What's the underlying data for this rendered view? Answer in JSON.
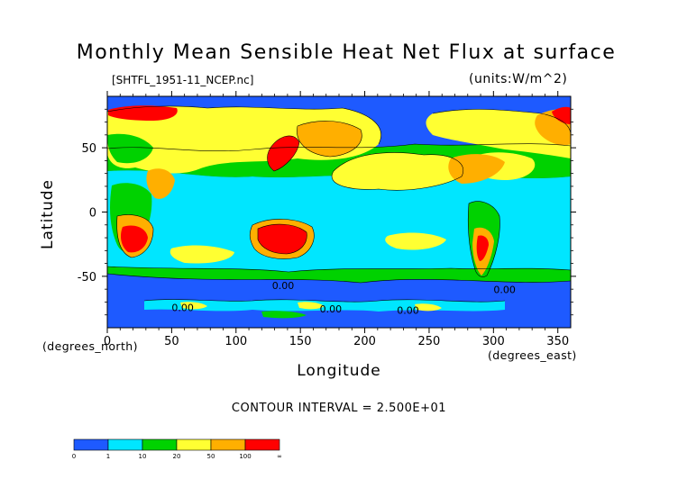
{
  "chart_data": {
    "type": "heatmap",
    "title": "Monthly Mean Sensible Heat Net Flux at surface",
    "source_file": "[SHTFL_1951-11_NCEP.nc]",
    "units": "(units:W/m^2)",
    "xlabel": "Longitude",
    "ylabel": "Latitude",
    "x_unit_label": "(degrees_east)",
    "y_unit_label": "(degrees_north)",
    "contour_interval": "CONTOUR INTERVAL = 2.500E+01",
    "xlim": [
      0,
      360
    ],
    "ylim": [
      -90,
      90
    ],
    "x_ticks": [
      0,
      50,
      100,
      150,
      200,
      250,
      300,
      350
    ],
    "y_ticks": [
      -50,
      0,
      50
    ],
    "contour_labels": [
      "0.00",
      "0.00",
      "0.00",
      "0.00",
      "0.00"
    ],
    "colorbar": {
      "levels": [
        "0",
        "1",
        "10",
        "20",
        "50",
        "100",
        "∞"
      ],
      "colors": [
        "#1e5aff",
        "#00e6ff",
        "#00d200",
        "#ffff32",
        "#ffaf00",
        "#ff0000"
      ]
    },
    "colors": {
      "ocean": "#1e5aff",
      "cyan": "#00e6ff",
      "green": "#00d200",
      "yellow": "#ffff32",
      "orange": "#ffaf00",
      "red": "#ff0000"
    }
  }
}
